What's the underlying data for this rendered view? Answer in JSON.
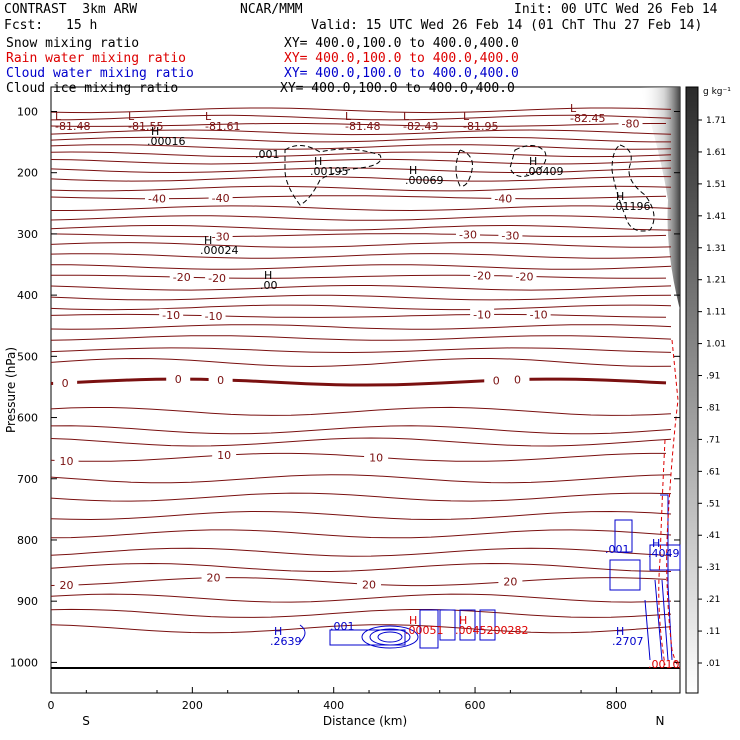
{
  "header": {
    "left_title": "CONTRAST  3km ARW",
    "center_title": "NCAR/MMM",
    "init": "Init: 00 UTC Wed 26 Feb 14",
    "fcst_label": "Fcst:",
    "fcst_value": "15 h",
    "valid": "Valid: 15 UTC Wed 26 Feb 14 (01 ChT Thu 27 Feb 14)"
  },
  "fields": [
    {
      "name": "Snow mixing ratio",
      "xy": "",
      "color": "#000000"
    },
    {
      "name": "Rain water mixing ratio",
      "xy": "XY= 400.0,100.0 to 400.0,400.0",
      "color": "#dd0000"
    },
    {
      "name": "Cloud water mixing ratio",
      "xy": "XY= 400.0,100.0 to 400.0,400.0",
      "color": "#0000cc"
    },
    {
      "name": "Cloud ice mixing ratio",
      "xy": "XY= 400.0,100.0 to 400.0,400.0",
      "color": "#000000"
    }
  ],
  "snow_xy": "XY= 400.0,100.0 to 400.0,400.0",
  "chart_data": {
    "type": "contour-cross-section",
    "xlabel": "Distance (km)",
    "ylabel": "Pressure (hPa)",
    "xlim": [
      0,
      890
    ],
    "ylim": [
      1050,
      60
    ],
    "x_ticks": [
      0,
      200,
      400,
      600,
      800
    ],
    "y_ticks": [
      100,
      200,
      300,
      400,
      500,
      600,
      700,
      800,
      900,
      1000
    ],
    "end_labels": {
      "left": "S",
      "right": "N"
    },
    "temperature_isotherms_c": [
      {
        "value": 10,
        "pressure": 665,
        "labels": [
          {
            "x": 22,
            "text": "10"
          },
          {
            "x": 245,
            "text": "10"
          },
          {
            "x": 460,
            "text": "10"
          }
        ]
      },
      {
        "value": 20,
        "pressure": 868,
        "labels": [
          {
            "x": 22,
            "text": "20"
          },
          {
            "x": 230,
            "text": "20"
          },
          {
            "x": 450,
            "text": "20"
          },
          {
            "x": 650,
            "text": "20"
          }
        ]
      },
      {
        "value": 0,
        "pressure": 542,
        "labels": [
          {
            "x": 20,
            "text": "0"
          },
          {
            "x": 180,
            "text": "0"
          },
          {
            "x": 240,
            "text": "0"
          },
          {
            "x": 630,
            "text": "0"
          },
          {
            "x": 660,
            "text": "0"
          }
        ]
      },
      {
        "value": -10,
        "pressure": 434,
        "labels": [
          {
            "x": 170,
            "text": "-10"
          },
          {
            "x": 230,
            "text": "-10"
          },
          {
            "x": 610,
            "text": "-10"
          },
          {
            "x": 690,
            "text": "-10"
          }
        ]
      },
      {
        "value": -20,
        "pressure": 370,
        "labels": [
          {
            "x": 185,
            "text": "-20"
          },
          {
            "x": 235,
            "text": "-20"
          },
          {
            "x": 610,
            "text": "-20"
          },
          {
            "x": 670,
            "text": "-20"
          }
        ]
      },
      {
        "value": -30,
        "pressure": 302,
        "labels": [
          {
            "x": 240,
            "text": "-30"
          },
          {
            "x": 590,
            "text": "-30"
          },
          {
            "x": 650,
            "text": "-30"
          }
        ]
      },
      {
        "value": -40,
        "pressure": 240,
        "labels": [
          {
            "x": 150,
            "text": "-40"
          },
          {
            "x": 240,
            "text": "-40"
          },
          {
            "x": 640,
            "text": "-40"
          }
        ]
      },
      {
        "value": -80,
        "pressure": 122,
        "labels": [
          {
            "x": 820,
            "text": "-80"
          }
        ]
      }
    ],
    "temperature_minima": [
      "-81.48",
      "-81.55",
      "-81.61",
      "-81.48",
      "-82.43",
      "-81.95",
      "-82.45"
    ],
    "maxima_labels": [
      ".00016",
      ".00195",
      ".00069",
      ".00409",
      ".01196",
      ".00024",
      ".00",
      ".001",
      ".2639",
      ".001",
      ".00051",
      ".00452",
      ".00282",
      ".2707",
      ".001",
      ".4049",
      ".0010"
    ],
    "colorbar": {
      "unit": "g kg⁻¹",
      "ticks": [
        "1.71",
        "1.61",
        "1.51",
        "1.41",
        "1.31",
        "1.21",
        "1.11",
        "1.01",
        ".91",
        ".81",
        ".71",
        ".61",
        ".51",
        ".41",
        ".31",
        ".21",
        ".11",
        ".01"
      ]
    }
  }
}
